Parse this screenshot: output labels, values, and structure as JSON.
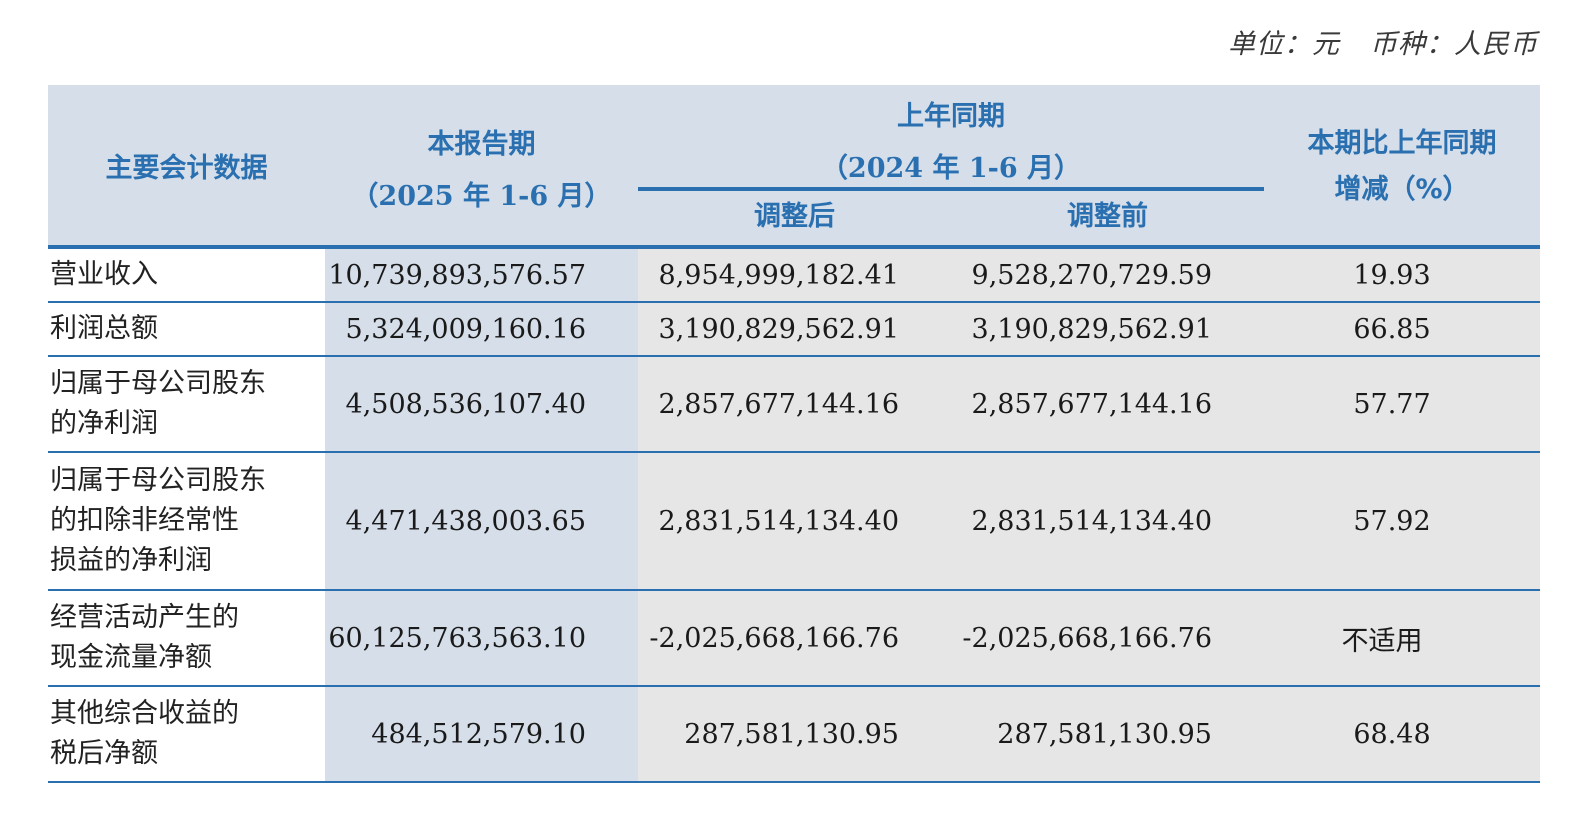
{
  "unit": {
    "unit_text": "单位：元",
    "currency_text": "币种：人民币"
  },
  "header": {
    "item": "主要会计数据",
    "current_line1": "本报告期",
    "current_line2": "（2025 年 1-6 月）",
    "prior_line1": "上年同期",
    "prior_line2": "（2024 年 1-6 月）",
    "adjusted_after": "调整后",
    "adjusted_before": "调整前",
    "change_line1": "本期比上年同期",
    "change_line2": "增减（%）"
  },
  "rows": [
    {
      "label": "营业收入",
      "current": "10,739,893,576.57",
      "adj_after": "8,954,999,182.41",
      "adj_before": "9,528,270,729.59",
      "change": "19.93"
    },
    {
      "label": "利润总额",
      "current": "5,324,009,160.16",
      "adj_after": "3,190,829,562.91",
      "adj_before": "3,190,829,562.91",
      "change": "66.85"
    },
    {
      "label": "归属于母公司股东\n的净利润",
      "current": "4,508,536,107.40",
      "adj_after": "2,857,677,144.16",
      "adj_before": "2,857,677,144.16",
      "change": "57.77"
    },
    {
      "label": "归属于母公司股东\n的扣除非经常性\n损益的净利润",
      "current": "4,471,438,003.65",
      "adj_after": "2,831,514,134.40",
      "adj_before": "2,831,514,134.40",
      "change": "57.92"
    },
    {
      "label": "经营活动产生的\n现金流量净额",
      "current": "60,125,763,563.10",
      "adj_after": "-2,025,668,166.76",
      "adj_before": "-2,025,668,166.76",
      "change": "不适用"
    },
    {
      "label": "其他综合收益的\n税后净额",
      "current": "484,512,579.10",
      "adj_after": "287,581,130.95",
      "adj_before": "287,581,130.95",
      "change": "68.48"
    }
  ]
}
